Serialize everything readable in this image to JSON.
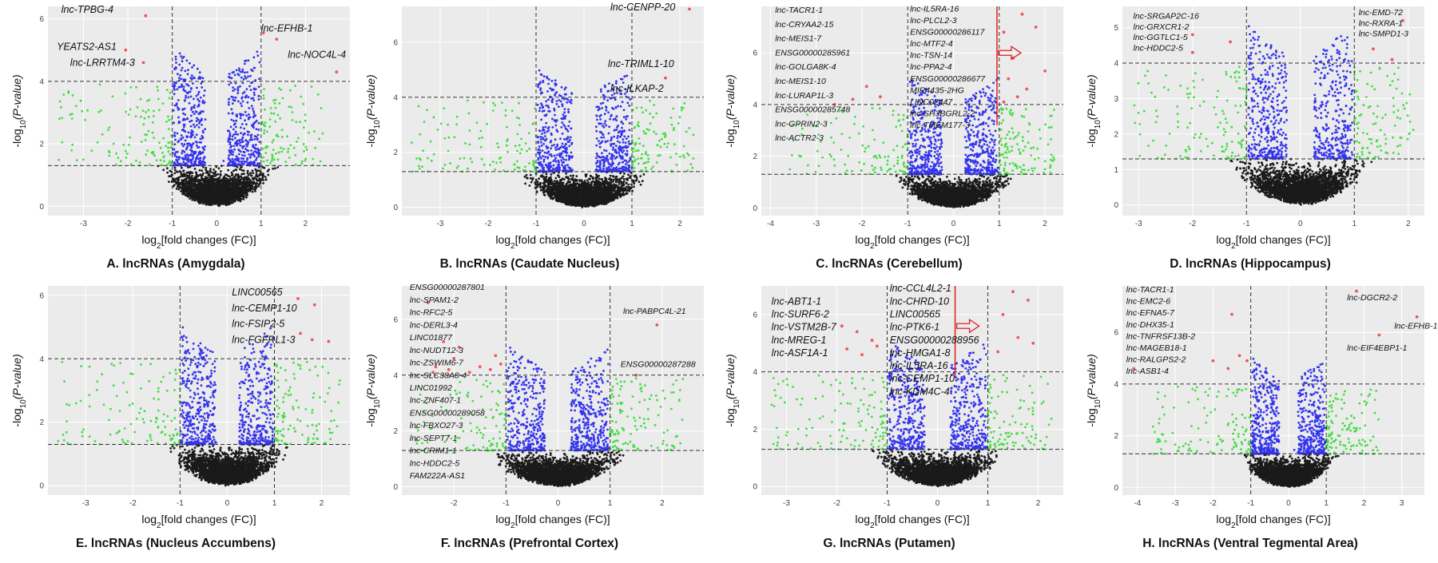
{
  "figure": {
    "colors": {
      "black": "#1a1a1a",
      "green": "#44dd44",
      "blue": "#3333ee",
      "red": "#f25555",
      "arrow": "#e02020",
      "bg": "#ebebeb",
      "grid": "#ffffff"
    },
    "xlabel_prefix": "log",
    "xlabel_sub": "2",
    "xlabel_suffix": "[fold changes (FC)]",
    "ylabel_prefix": "-log",
    "ylabel_sub": "10",
    "ylabel_suffix": "(P-value)"
  },
  "chart_data": [
    {
      "type": "scatter",
      "panel": "A",
      "caption": "A. lncRNAs (Amygdala)",
      "xlim": [
        -3.8,
        3.0
      ],
      "ylim": [
        -0.3,
        6.4
      ],
      "xticks": [
        -3,
        -2,
        -1,
        0,
        1,
        2
      ],
      "yticks": [
        0,
        2,
        4,
        6
      ],
      "fc_threshold": [
        -1,
        1
      ],
      "p_thresholds": [
        1.3,
        4.0
      ],
      "red_points": [
        [
          -1.6,
          6.1
        ],
        [
          -2.05,
          5.0
        ],
        [
          -1.65,
          4.6
        ],
        [
          1.35,
          5.35
        ],
        [
          2.7,
          4.3
        ],
        [
          1.05,
          5.55
        ]
      ],
      "label_size": "big",
      "labels": [
        {
          "text": "lnc-TPBG-4",
          "x": -3.5,
          "y": 6.2
        },
        {
          "text": "YEATS2-AS1",
          "x": -3.6,
          "y": 5.0
        },
        {
          "text": "lnc-LRRTM4-3",
          "x": -3.3,
          "y": 4.5
        },
        {
          "text": "lnc-EFHB-1",
          "x": 1.0,
          "y": 5.6
        },
        {
          "text": "lnc-NOC4L-4",
          "x": 1.6,
          "y": 4.75
        }
      ]
    },
    {
      "type": "scatter",
      "panel": "B",
      "caption": "B. lncRNAs (Caudate Nucleus)",
      "xlim": [
        -3.8,
        2.5
      ],
      "ylim": [
        -0.3,
        7.3
      ],
      "xticks": [
        -3,
        -2,
        -1,
        0,
        1,
        2
      ],
      "yticks": [
        0,
        2,
        4,
        6
      ],
      "fc_threshold": [
        -1,
        1
      ],
      "p_thresholds": [
        1.3,
        4.0
      ],
      "red_points": [
        [
          2.2,
          7.2
        ],
        [
          1.7,
          4.7
        ]
      ],
      "label_size": "big",
      "labels": [
        {
          "text": "lnc-CENPP-20",
          "x": 0.55,
          "y": 7.15
        },
        {
          "text": "lnc-TRIML1-10",
          "x": 0.5,
          "y": 5.1
        },
        {
          "text": "lnc-ILKAP-2",
          "x": 0.55,
          "y": 4.2
        }
      ]
    },
    {
      "type": "scatter",
      "panel": "C",
      "caption": "C. lncRNAs (Cerebellum)",
      "xlim": [
        -4.2,
        2.4
      ],
      "ylim": [
        -0.3,
        7.8
      ],
      "xticks": [
        -4,
        -3,
        -2,
        -1,
        0,
        1,
        2
      ],
      "yticks": [
        0,
        2,
        4,
        6
      ],
      "fc_threshold": [
        -1,
        1
      ],
      "p_thresholds": [
        1.3,
        4.0
      ],
      "red_points": [
        [
          -2.2,
          4.2
        ],
        [
          -1.9,
          4.7
        ],
        [
          -1.6,
          4.3
        ],
        [
          -2.6,
          4.0
        ],
        [
          1.1,
          6.8
        ],
        [
          1.3,
          5.8
        ],
        [
          1.5,
          7.5
        ],
        [
          1.2,
          5.0
        ],
        [
          1.6,
          4.6
        ],
        [
          1.4,
          4.3
        ],
        [
          1.8,
          7.0
        ],
        [
          1.1,
          4.1
        ],
        [
          2.0,
          5.3
        ]
      ],
      "arrow": {
        "x": 0.95,
        "y_top": 7.8,
        "y_bottom": 3.2,
        "head_y": 6.0
      },
      "label_size": "small",
      "labels": [
        {
          "text": "lnc-TACR1-1",
          "x": -3.9,
          "y": 7.55
        },
        {
          "text": "lnc-CRYAA2-15",
          "x": -3.9,
          "y": 7.0
        },
        {
          "text": "lnc-MEIS1-7",
          "x": -3.9,
          "y": 6.45
        },
        {
          "text": "ENSG00000285961",
          "x": -3.9,
          "y": 5.9
        },
        {
          "text": "lnc-GOLGA8K-4",
          "x": -3.9,
          "y": 5.35
        },
        {
          "text": "lnc-MEIS1-10",
          "x": -3.9,
          "y": 4.8
        },
        {
          "text": "lnc-LURAP1L-3",
          "x": -3.9,
          "y": 4.25
        },
        {
          "text": "ENSG00000285748",
          "x": -3.9,
          "y": 3.7
        },
        {
          "text": "lnc-GPRIN2-3",
          "x": -3.9,
          "y": 3.15
        },
        {
          "text": "lnc-ACTR2-3",
          "x": -3.9,
          "y": 2.6
        },
        {
          "text": "lnc-IL5RA-16",
          "x": -0.95,
          "y": 7.6
        },
        {
          "text": "lnc-PLCL2-3",
          "x": -0.95,
          "y": 7.15
        },
        {
          "text": "ENSG00000286117",
          "x": -0.95,
          "y": 6.7
        },
        {
          "text": "lnc-MTF2-4",
          "x": -0.95,
          "y": 6.25
        },
        {
          "text": "lnc-TSN-14",
          "x": -0.95,
          "y": 5.8
        },
        {
          "text": "lnc-PPA2-4",
          "x": -0.95,
          "y": 5.35
        },
        {
          "text": "ENSG00000286677",
          "x": -0.95,
          "y": 4.9
        },
        {
          "text": "MIR4435-2HG",
          "x": -0.95,
          "y": 4.45
        },
        {
          "text": "LINC02447",
          "x": -0.95,
          "y": 4.0
        },
        {
          "text": "lnc-SH3BGRL2-2",
          "x": -0.95,
          "y": 3.55
        },
        {
          "text": "lnc-TMEM177-3",
          "x": -0.95,
          "y": 3.1
        }
      ]
    },
    {
      "type": "scatter",
      "panel": "D",
      "caption": "D. lncRNAs (Hippocampus)",
      "xlim": [
        -3.3,
        2.3
      ],
      "ylim": [
        -0.3,
        5.6
      ],
      "xticks": [
        -3,
        -2,
        -1,
        0,
        1,
        2
      ],
      "yticks": [
        0,
        1,
        2,
        3,
        4,
        5
      ],
      "fc_threshold": [
        -1,
        1
      ],
      "p_thresholds": [
        1.3,
        4.0
      ],
      "red_points": [
        [
          -2.0,
          4.8
        ],
        [
          -1.3,
          4.6
        ],
        [
          -2.0,
          4.3
        ],
        [
          1.35,
          4.4
        ],
        [
          1.9,
          5.2
        ],
        [
          1.7,
          4.1
        ]
      ],
      "label_size": "small",
      "labels": [
        {
          "text": "lnc-SRGAP2C-16",
          "x": -3.1,
          "y": 5.25
        },
        {
          "text": "lnc-GRXCR1-2",
          "x": -3.1,
          "y": 4.95
        },
        {
          "text": "lnc-GGTLC1-5",
          "x": -3.1,
          "y": 4.65
        },
        {
          "text": "lnc-HDDC2-5",
          "x": -3.1,
          "y": 4.35
        },
        {
          "text": "lnc-EMD-72",
          "x": 1.08,
          "y": 5.35
        },
        {
          "text": "lnc-RXRA-1",
          "x": 1.08,
          "y": 5.05
        },
        {
          "text": "lnc-SMPD1-3",
          "x": 1.08,
          "y": 4.75
        }
      ]
    },
    {
      "type": "scatter",
      "panel": "E",
      "caption": "E. lncRNAs (Nucleus Accumbens)",
      "xlim": [
        -3.8,
        2.6
      ],
      "ylim": [
        -0.3,
        6.3
      ],
      "xticks": [
        -3,
        -2,
        -1,
        0,
        1,
        2
      ],
      "yticks": [
        0,
        2,
        4,
        6
      ],
      "fc_threshold": [
        -1,
        1
      ],
      "p_thresholds": [
        1.3,
        4.0
      ],
      "red_points": [
        [
          1.5,
          5.9
        ],
        [
          1.85,
          5.7
        ],
        [
          1.55,
          4.8
        ],
        [
          1.8,
          4.6
        ],
        [
          2.15,
          4.55
        ]
      ],
      "label_size": "big",
      "labels": [
        {
          "text": "LINC00565",
          "x": 0.1,
          "y": 6.0
        },
        {
          "text": "lnc-CEMP1-10",
          "x": 0.1,
          "y": 5.5
        },
        {
          "text": "lnc-FSIP2-5",
          "x": 0.1,
          "y": 5.0
        },
        {
          "text": "lnc-FGFRL1-3",
          "x": 0.1,
          "y": 4.5
        }
      ]
    },
    {
      "type": "scatter",
      "panel": "F",
      "caption": "F. lncRNAs (Prefrontal Cortex)",
      "xlim": [
        -3.0,
        2.8
      ],
      "ylim": [
        -0.3,
        7.2
      ],
      "xticks": [
        -2,
        -1,
        0,
        1,
        2
      ],
      "yticks": [
        0,
        2,
        4,
        6
      ],
      "fc_threshold": [
        -1,
        1
      ],
      "p_thresholds": [
        1.3,
        4.0
      ],
      "red_points": [
        [
          -2.5,
          6.6
        ],
        [
          -2.2,
          5.2
        ],
        [
          -1.9,
          5.0
        ],
        [
          -2.35,
          4.3
        ],
        [
          -2.1,
          4.2
        ],
        [
          -1.7,
          4.1
        ],
        [
          -1.5,
          4.3
        ],
        [
          -1.3,
          4.2
        ],
        [
          -1.2,
          4.7
        ],
        [
          -2.0,
          4.6
        ],
        [
          -1.1,
          4.4
        ],
        [
          -2.4,
          4.1
        ],
        [
          1.9,
          5.8
        ],
        [
          1.5,
          4.0
        ]
      ],
      "label_size": "small",
      "labels": [
        {
          "text": "ENSG00000287801",
          "x": -2.85,
          "y": 7.05
        },
        {
          "text": "lnc-SPAM1-2",
          "x": -2.85,
          "y": 6.6
        },
        {
          "text": "lnc-RFC2-5",
          "x": -2.85,
          "y": 6.15
        },
        {
          "text": "lnc-DERL3-4",
          "x": -2.85,
          "y": 5.7
        },
        {
          "text": "LINC01877",
          "x": -2.85,
          "y": 5.25
        },
        {
          "text": "lnc-NUDT12-3",
          "x": -2.85,
          "y": 4.8
        },
        {
          "text": "lnc-ZSWIM6-7",
          "x": -2.85,
          "y": 4.35
        },
        {
          "text": "lnc-SLC38A8-4",
          "x": -2.85,
          "y": 3.9
        },
        {
          "text": "LINC01992",
          "x": -2.85,
          "y": 3.45
        },
        {
          "text": "lnc-ZNF407-1",
          "x": -2.85,
          "y": 3.0
        },
        {
          "text": "ENSG00000289058",
          "x": -2.85,
          "y": 2.55
        },
        {
          "text": "lnc-FBXO27-3",
          "x": -2.85,
          "y": 2.1
        },
        {
          "text": "lnc-SEPT7-1",
          "x": -2.85,
          "y": 1.65
        },
        {
          "text": "lnc-CRIM1-1",
          "x": -2.85,
          "y": 1.2
        },
        {
          "text": "lnc-HDDC2-5",
          "x": -2.85,
          "y": 0.75
        },
        {
          "text": "FAM222A-AS1",
          "x": -2.85,
          "y": 0.3
        },
        {
          "text": "lnc-PABPC4L-21",
          "x": 1.25,
          "y": 6.2
        },
        {
          "text": "ENSG00000287288",
          "x": 1.2,
          "y": 4.3
        }
      ]
    },
    {
      "type": "scatter",
      "panel": "G",
      "caption": "G. lncRNAs (Putamen)",
      "xlim": [
        -3.5,
        2.5
      ],
      "ylim": [
        -0.3,
        7.0
      ],
      "xticks": [
        -3,
        -2,
        -1,
        0,
        1,
        2
      ],
      "yticks": [
        0,
        2,
        4,
        6
      ],
      "fc_threshold": [
        -1,
        1
      ],
      "p_thresholds": [
        1.3,
        4.0
      ],
      "red_points": [
        [
          -1.9,
          5.6
        ],
        [
          -1.6,
          5.4
        ],
        [
          -1.3,
          5.1
        ],
        [
          -1.2,
          4.9
        ],
        [
          -1.5,
          4.6
        ],
        [
          -1.8,
          4.8
        ],
        [
          1.5,
          6.8
        ],
        [
          1.8,
          6.5
        ],
        [
          1.3,
          6.0
        ],
        [
          1.6,
          5.2
        ],
        [
          1.2,
          4.7
        ],
        [
          1.9,
          5.0
        ]
      ],
      "arrow": {
        "x": 0.35,
        "y_top": 7.0,
        "y_bottom": 3.8,
        "head_y": 5.6
      },
      "label_size": "big",
      "labels": [
        {
          "text": "lnc-ABT1-1",
          "x": -3.3,
          "y": 6.35
        },
        {
          "text": "lnc-SURF6-2",
          "x": -3.3,
          "y": 5.9
        },
        {
          "text": "lnc-VSTM2B-7",
          "x": -3.3,
          "y": 5.45
        },
        {
          "text": "lnc-MREG-1",
          "x": -3.3,
          "y": 5.0
        },
        {
          "text": "lnc-ASF1A-1",
          "x": -3.3,
          "y": 4.55
        },
        {
          "text": "lnc-CCL4L2-1",
          "x": -0.95,
          "y": 6.8
        },
        {
          "text": "lnc-CHRD-10",
          "x": -0.95,
          "y": 6.35
        },
        {
          "text": "LINC00565",
          "x": -0.95,
          "y": 5.9
        },
        {
          "text": "lnc-PTK6-1",
          "x": -0.95,
          "y": 5.45
        },
        {
          "text": "ENSG00000288956",
          "x": -0.95,
          "y": 5.0
        },
        {
          "text": "lnc-HMGA1-8",
          "x": -0.95,
          "y": 4.55
        },
        {
          "text": "lnc-IL5RA-16",
          "x": -0.95,
          "y": 4.1
        },
        {
          "text": "lnc-CEMP1-10",
          "x": -0.95,
          "y": 3.65
        },
        {
          "text": "lnc-KDM4C-4",
          "x": -0.95,
          "y": 3.2
        }
      ]
    },
    {
      "type": "scatter",
      "panel": "H",
      "caption": "H. lncRNAs (Ventral Tegmental Area)",
      "xlim": [
        -4.4,
        3.6
      ],
      "ylim": [
        -0.3,
        7.8
      ],
      "xticks": [
        -4,
        -3,
        -2,
        -1,
        0,
        1,
        2,
        3
      ],
      "yticks": [
        0,
        2,
        4,
        6
      ],
      "fc_threshold": [
        -1,
        1
      ],
      "p_thresholds": [
        1.3,
        4.0
      ],
      "red_points": [
        [
          -4.1,
          4.6
        ],
        [
          -2.0,
          4.9
        ],
        [
          -1.6,
          4.6
        ],
        [
          -1.3,
          5.1
        ],
        [
          -1.1,
          4.9
        ],
        [
          -1.5,
          6.7
        ],
        [
          1.8,
          7.6
        ],
        [
          3.4,
          6.6
        ],
        [
          2.4,
          5.9
        ]
      ],
      "label_size": "small",
      "labels": [
        {
          "text": "lnc-TACR1-1",
          "x": -4.3,
          "y": 7.55
        },
        {
          "text": "lnc-EMC2-6",
          "x": -4.3,
          "y": 7.1
        },
        {
          "text": "lnc-EFNA5-7",
          "x": -4.3,
          "y": 6.65
        },
        {
          "text": "lnc-DHX35-1",
          "x": -4.3,
          "y": 6.2
        },
        {
          "text": "lnc-TNFRSF13B-2",
          "x": -4.3,
          "y": 5.75
        },
        {
          "text": "lnc-MAGEB18-1",
          "x": -4.3,
          "y": 5.3
        },
        {
          "text": "lnc-RALGPS2-2",
          "x": -4.3,
          "y": 4.85
        },
        {
          "text": "lnc-ASB1-4",
          "x": -4.3,
          "y": 4.4
        },
        {
          "text": "lnc-DGCR2-2",
          "x": 1.55,
          "y": 7.25
        },
        {
          "text": "lnc-EFHB-1",
          "x": 2.8,
          "y": 6.15
        },
        {
          "text": "lnc-EIF4EBP1-1",
          "x": 1.55,
          "y": 5.3
        }
      ]
    }
  ]
}
